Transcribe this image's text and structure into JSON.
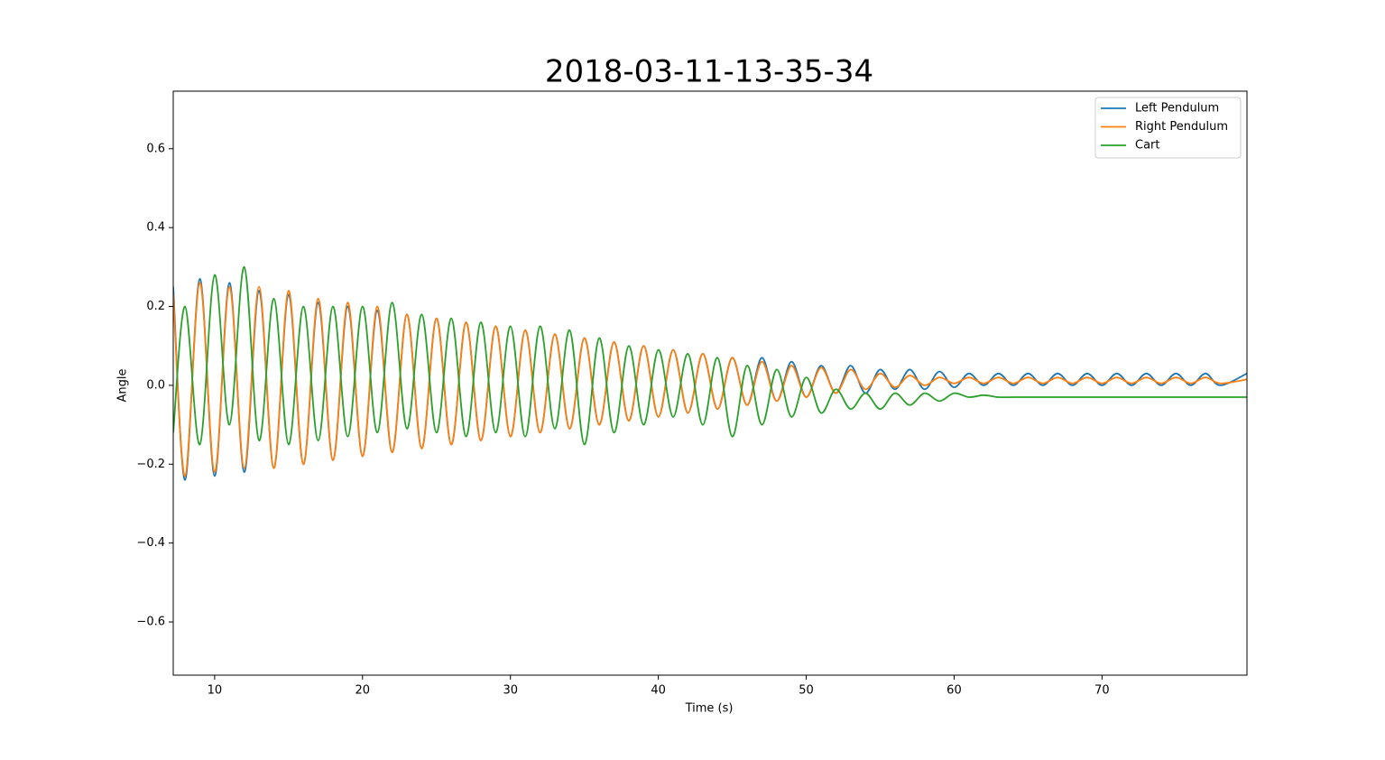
{
  "chart_data": {
    "type": "line",
    "title": "2018-03-11-13-35-34",
    "x_label": "Time (s)",
    "y_label": "Angle",
    "x": [
      7.2,
      8,
      9,
      10,
      11,
      12,
      13,
      14,
      15,
      16,
      17,
      18,
      19,
      20,
      21,
      22,
      23,
      24,
      25,
      26,
      27,
      28,
      29,
      30,
      31,
      32,
      33,
      34,
      35,
      36,
      37,
      38,
      39,
      40,
      41,
      42,
      43,
      44,
      45,
      46,
      47,
      48,
      49,
      50,
      51,
      52,
      53,
      54,
      55,
      56,
      57,
      58,
      59,
      60,
      61,
      62,
      63,
      64,
      65,
      66,
      67,
      68,
      69,
      70,
      71,
      72,
      73,
      74,
      75,
      76,
      77,
      78,
      79.8
    ],
    "series": [
      {
        "name": "Left Pendulum",
        "color": "#1f77b4",
        "values": [
          0.25,
          -0.24,
          0.27,
          -0.23,
          0.26,
          -0.22,
          0.24,
          -0.21,
          0.23,
          -0.2,
          0.21,
          -0.19,
          0.2,
          -0.18,
          0.19,
          -0.17,
          0.18,
          -0.16,
          0.17,
          -0.15,
          0.16,
          -0.14,
          0.15,
          -0.13,
          0.14,
          -0.12,
          0.13,
          -0.11,
          0.12,
          -0.1,
          0.11,
          -0.09,
          0.1,
          -0.08,
          0.09,
          -0.07,
          0.08,
          -0.06,
          0.07,
          -0.05,
          0.07,
          -0.04,
          0.06,
          -0.03,
          0.05,
          -0.02,
          0.05,
          -0.02,
          0.04,
          -0.01,
          0.04,
          -0.01,
          0.035,
          -0.005,
          0.03,
          0,
          0.03,
          0,
          0.03,
          0,
          0.03,
          0,
          0.03,
          0,
          0.03,
          0,
          0.03,
          0,
          0.03,
          0,
          0.03,
          0,
          0.03
        ]
      },
      {
        "name": "Right Pendulum",
        "color": "#ff7f0e",
        "values": [
          0.23,
          -0.23,
          0.26,
          -0.22,
          0.25,
          -0.21,
          0.25,
          -0.21,
          0.24,
          -0.2,
          0.22,
          -0.19,
          0.21,
          -0.18,
          0.2,
          -0.17,
          0.18,
          -0.16,
          0.17,
          -0.15,
          0.16,
          -0.14,
          0.15,
          -0.13,
          0.14,
          -0.12,
          0.13,
          -0.11,
          0.12,
          -0.1,
          0.11,
          -0.09,
          0.1,
          -0.08,
          0.09,
          -0.07,
          0.08,
          -0.06,
          0.07,
          -0.05,
          0.06,
          -0.04,
          0.05,
          -0.03,
          0.045,
          -0.02,
          0.04,
          -0.01,
          0.03,
          -0.005,
          0.025,
          0,
          0.02,
          0.005,
          0.02,
          0.005,
          0.02,
          0.005,
          0.02,
          0.005,
          0.02,
          0.005,
          0.02,
          0.005,
          0.02,
          0.005,
          0.02,
          0.005,
          0.02,
          0.005,
          0.02,
          0.005,
          0.015
        ]
      },
      {
        "name": "Cart",
        "color": "#2ca02c",
        "values": [
          -0.12,
          0.2,
          -0.15,
          0.28,
          -0.1,
          0.3,
          -0.14,
          0.22,
          -0.15,
          0.2,
          -0.14,
          0.2,
          -0.13,
          0.2,
          -0.12,
          0.21,
          -0.11,
          0.18,
          -0.12,
          0.17,
          -0.13,
          0.16,
          -0.12,
          0.15,
          -0.13,
          0.15,
          -0.11,
          0.14,
          -0.15,
          0.12,
          -0.12,
          0.1,
          -0.1,
          0.09,
          -0.08,
          0.08,
          -0.1,
          0.07,
          -0.13,
          0.05,
          -0.1,
          0.04,
          -0.08,
          0.02,
          -0.07,
          -0.01,
          -0.06,
          -0.02,
          -0.06,
          -0.02,
          -0.05,
          -0.02,
          -0.04,
          -0.02,
          -0.03,
          -0.025,
          -0.03,
          -0.03,
          -0.03,
          -0.03,
          -0.03,
          -0.03,
          -0.03,
          -0.03,
          -0.03,
          -0.03,
          -0.03,
          -0.03,
          -0.03,
          -0.03,
          -0.03,
          -0.03,
          -0.03
        ]
      }
    ],
    "xlim": [
      7.2,
      79.8
    ],
    "ylim": [
      -0.735,
      0.746
    ],
    "xticks": [
      10,
      20,
      30,
      40,
      50,
      60,
      70
    ],
    "yticks": [
      {
        "value": -0.6,
        "label": "−0.6"
      },
      {
        "value": -0.4,
        "label": "−0.4"
      },
      {
        "value": -0.2,
        "label": "−0.2"
      },
      {
        "value": 0,
        "label": "0.0"
      },
      0.2,
      0.4,
      0.6
    ],
    "legend": "upper right"
  }
}
